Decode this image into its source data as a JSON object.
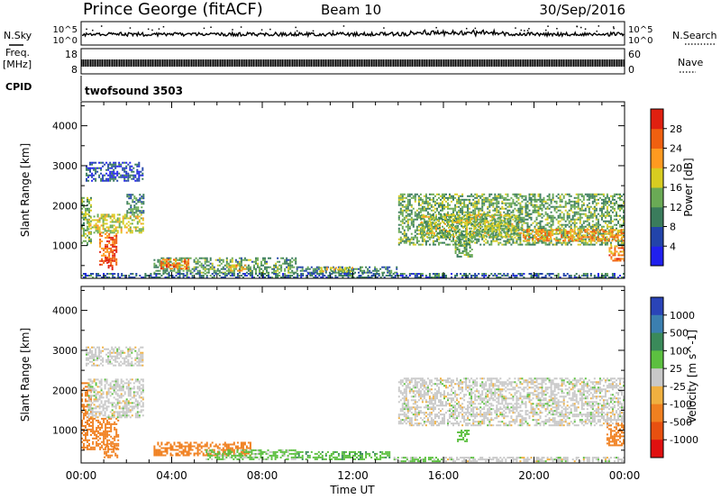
{
  "header": {
    "station": "Prince George (fitACF)",
    "beam": "Beam 10",
    "date": "30/Sep/2016"
  },
  "summary_panels": {
    "nsky_label": "N.Sky",
    "nsearch_label": "N.Search",
    "noise_ticks": [
      "10^5",
      "10^0"
    ],
    "freq_label_1": "Freq.",
    "freq_label_2": "[MHz]",
    "freq_ticks": [
      "18",
      "8"
    ],
    "nave_label": "Nave",
    "nave_ticks": [
      "60",
      "0"
    ],
    "cpid_label": "CPID",
    "cpid_value": "twofsound 3503"
  },
  "colors": {
    "power_scale": [
      "#2020ee",
      "#2244aa",
      "#3a7c5c",
      "#6aaa55",
      "#d8cc20",
      "#ff9a20",
      "#f06010",
      "#e02010"
    ],
    "velocity_scale": [
      "#2a44b8",
      "#3b7fb0",
      "#3a8a5a",
      "#5cc040",
      "#c8c8c8",
      "#f0b040",
      "#f08020",
      "#e85010",
      "#e01010"
    ],
    "ground_scatter": "#bdbdbd"
  },
  "chart_data": [
    {
      "type": "heatmap",
      "title": "",
      "parameter": "Power",
      "xlabel": "Time UT",
      "ylabel": "Slant Range [km]",
      "colorbar_label": "Power [dB]",
      "colorbar_ticks": [
        "28",
        "24",
        "20",
        "16",
        "12",
        "8",
        "4"
      ],
      "colorbar_range": [
        0,
        32
      ],
      "x_ticks": [
        "00:00",
        "04:00",
        "08:00",
        "12:00",
        "16:00",
        "20:00",
        "00:00"
      ],
      "xlim_hours": [
        0,
        24
      ],
      "y_ticks": [
        "1000",
        "2000",
        "3000",
        "4000"
      ],
      "ylim_km": [
        180,
        4600
      ],
      "regions": [
        {
          "t": [
            0.0,
            0.5
          ],
          "r": [
            1000,
            2200
          ],
          "value": 14
        },
        {
          "t": [
            0.8,
            1.6
          ],
          "r": [
            500,
            1300
          ],
          "value": 26
        },
        {
          "t": [
            1.1,
            1.4
          ],
          "r": [
            380,
            700
          ],
          "value": 30
        },
        {
          "t": [
            0.3,
            2.8
          ],
          "r": [
            1300,
            1800
          ],
          "value": 17
        },
        {
          "t": [
            2.0,
            2.8
          ],
          "r": [
            1800,
            2300
          ],
          "value": 11
        },
        {
          "t": [
            0.2,
            2.8
          ],
          "r": [
            2600,
            3100
          ],
          "value": 6
        },
        {
          "t": [
            3.2,
            9.5
          ],
          "r": [
            300,
            700
          ],
          "value": 12
        },
        {
          "t": [
            3.5,
            4.8
          ],
          "r": [
            400,
            650
          ],
          "value": 24
        },
        {
          "t": [
            6.5,
            7.3
          ],
          "r": [
            350,
            550
          ],
          "value": 20
        },
        {
          "t": [
            9.5,
            14.0
          ],
          "r": [
            300,
            480
          ],
          "value": 10
        },
        {
          "t": [
            10.5,
            12.0
          ],
          "r": [
            330,
            450
          ],
          "value": 16
        },
        {
          "t": [
            14.0,
            24.0
          ],
          "r": [
            1000,
            2300
          ],
          "value": 13
        },
        {
          "t": [
            15.0,
            19.5
          ],
          "r": [
            1200,
            1800
          ],
          "value": 16
        },
        {
          "t": [
            19.5,
            24.0
          ],
          "r": [
            1100,
            1400
          ],
          "value": 22
        },
        {
          "t": [
            23.3,
            24.0
          ],
          "r": [
            600,
            1000
          ],
          "value": 24
        },
        {
          "t": [
            16.5,
            17.3
          ],
          "r": [
            700,
            1300
          ],
          "value": 13
        },
        {
          "t": [
            0.0,
            24.0
          ],
          "r": [
            180,
            300
          ],
          "value": 8
        }
      ]
    },
    {
      "type": "heatmap",
      "title": "",
      "parameter": "Velocity",
      "xlabel": "Time UT",
      "ylabel": "Slant Range [km]",
      "colorbar_label": "Velocity [m s^-1]",
      "colorbar_ticks": [
        "1000",
        "500",
        "100",
        "25",
        "-25",
        "-100",
        "-500",
        "-1000"
      ],
      "x_ticks": [
        "00:00",
        "04:00",
        "08:00",
        "12:00",
        "16:00",
        "20:00",
        "00:00"
      ],
      "xlim_hours": [
        0,
        24
      ],
      "y_ticks": [
        "1000",
        "2000",
        "3000",
        "4000"
      ],
      "ylim_km": [
        180,
        4600
      ],
      "regions": [
        {
          "t": [
            0.0,
            0.5
          ],
          "r": [
            1300,
            2200
          ],
          "value": -150
        },
        {
          "t": [
            0.0,
            1.7
          ],
          "r": [
            500,
            1300
          ],
          "value": -300
        },
        {
          "t": [
            1.0,
            1.6
          ],
          "r": [
            300,
            650
          ],
          "value": -200
        },
        {
          "t": [
            0.3,
            2.8
          ],
          "r": [
            1300,
            2300
          ],
          "value": 0
        },
        {
          "t": [
            0.2,
            2.8
          ],
          "r": [
            2600,
            3100
          ],
          "value": 0
        },
        {
          "t": [
            3.2,
            7.5
          ],
          "r": [
            350,
            700
          ],
          "value": -200
        },
        {
          "t": [
            5.5,
            9.5
          ],
          "r": [
            250,
            500
          ],
          "value": 40
        },
        {
          "t": [
            9.5,
            13.7
          ],
          "r": [
            250,
            480
          ],
          "value": 80
        },
        {
          "t": [
            13.8,
            16.0
          ],
          "r": [
            200,
            350
          ],
          "value": 40
        },
        {
          "t": [
            14.0,
            24.0
          ],
          "r": [
            1100,
            2300
          ],
          "value": 0
        },
        {
          "t": [
            16.6,
            17.2
          ],
          "r": [
            700,
            1000
          ],
          "value": 60
        },
        {
          "t": [
            23.2,
            24.0
          ],
          "r": [
            600,
            1200
          ],
          "value": -300
        },
        {
          "t": [
            16.0,
            24.0
          ],
          "r": [
            200,
            320
          ],
          "value": 0
        }
      ]
    }
  ]
}
